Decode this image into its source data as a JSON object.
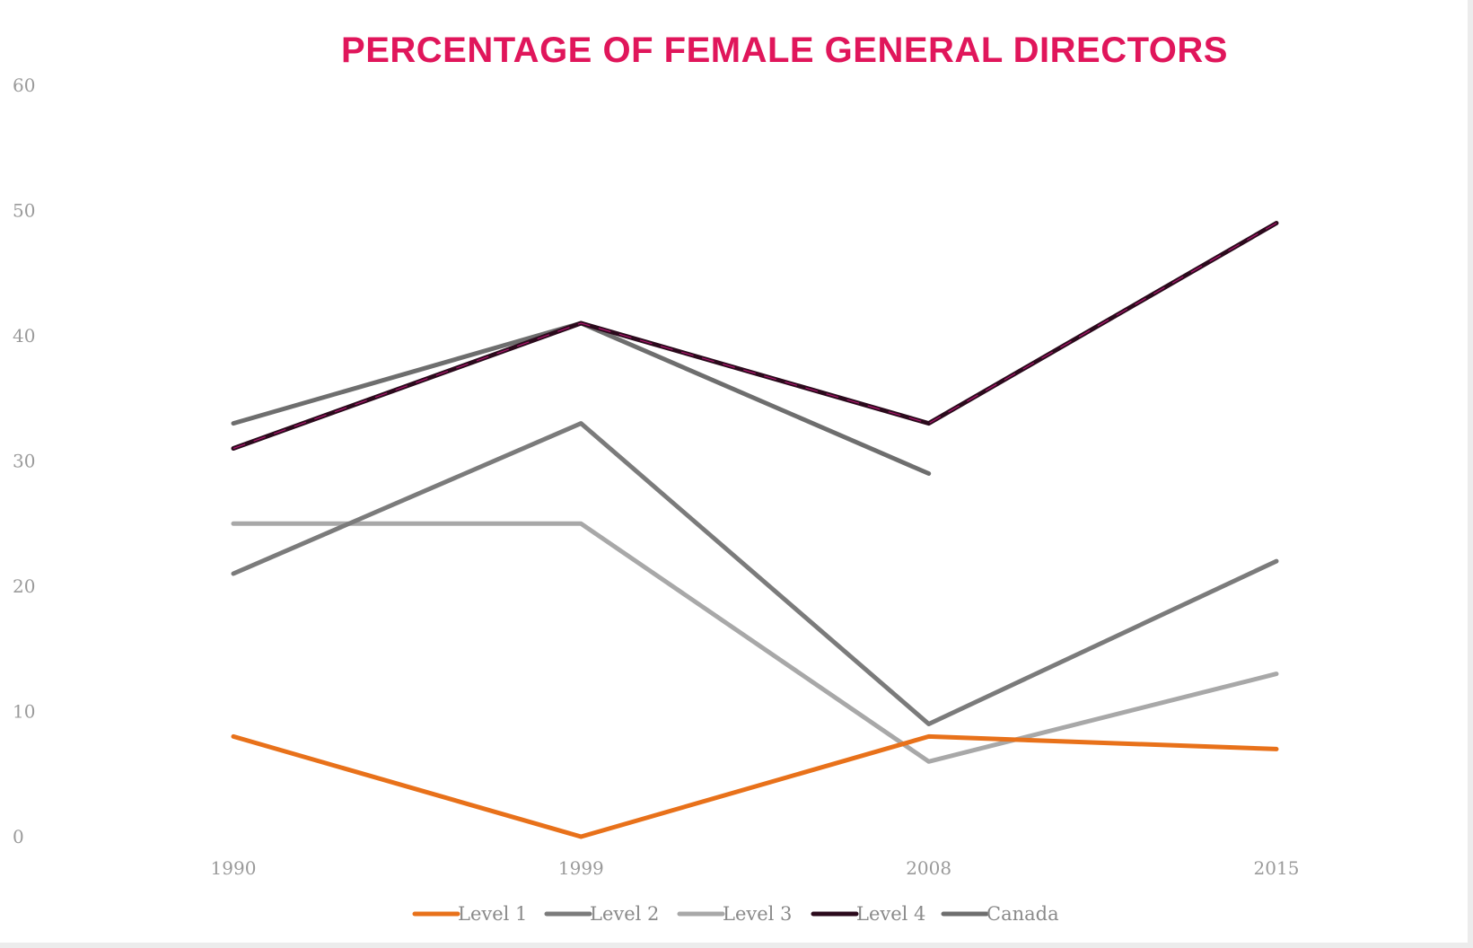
{
  "chart_data": {
    "type": "line",
    "title": "PERCENTAGE OF FEMALE GENERAL DIRECTORS",
    "title_color": "#e0165b",
    "xlabel": "",
    "ylabel": "",
    "categories": [
      "1990",
      "1999",
      "2008",
      "2015"
    ],
    "ylim": [
      0,
      60
    ],
    "yticks": [
      0,
      10,
      20,
      30,
      40,
      50,
      60
    ],
    "grid": false,
    "legend_position": "bottom",
    "series": [
      {
        "name": "Level 1",
        "color": "#e8711a",
        "values": [
          8,
          0,
          8,
          7
        ]
      },
      {
        "name": "Level 2",
        "color": "#7b7b7b",
        "values": [
          21,
          33,
          9,
          22
        ]
      },
      {
        "name": "Level 3",
        "color": "#a8a8a8",
        "values": [
          25,
          25,
          6,
          13
        ]
      },
      {
        "name": "Level 4",
        "color": "#2b0a1c",
        "values": [
          31,
          41,
          33,
          49
        ]
      },
      {
        "name": "Canada",
        "color": "#6e6e6e",
        "values": [
          33,
          41,
          29,
          null
        ]
      }
    ]
  }
}
